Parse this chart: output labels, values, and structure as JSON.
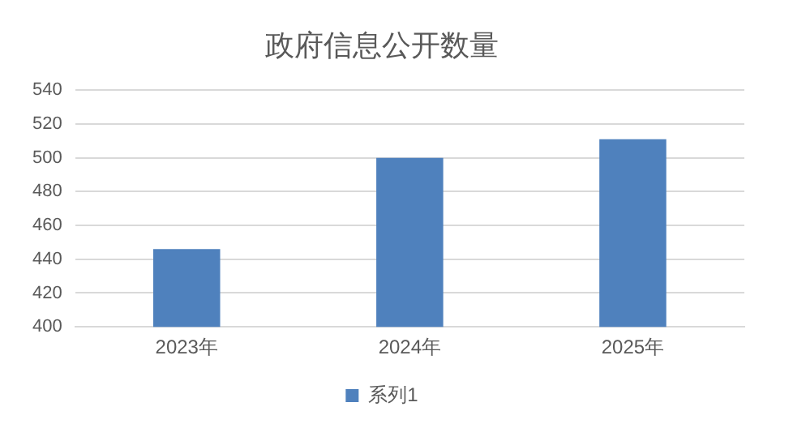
{
  "chart_data": {
    "type": "bar",
    "title": "政府信息公开数量",
    "categories": [
      "2023年",
      "2024年",
      "2025年"
    ],
    "series": [
      {
        "name": "系列1",
        "color": "#4f81bd",
        "values": [
          446,
          500,
          511
        ]
      }
    ],
    "ylim": [
      400,
      540
    ],
    "yticks": [
      400,
      420,
      440,
      460,
      480,
      500,
      520,
      540
    ],
    "grid": "y",
    "legend": "bottom"
  }
}
